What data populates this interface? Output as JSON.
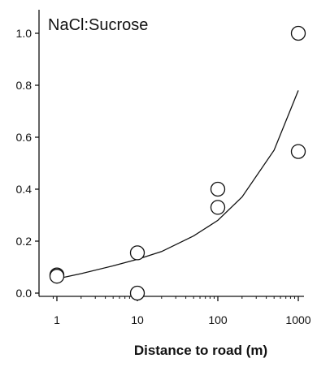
{
  "chart_data": {
    "type": "scatter",
    "title": "NaCl:Sucrose",
    "xlabel": "Distance to road (m)",
    "ylabel": "",
    "x_scale": "log",
    "xlim": [
      0.9,
      1100
    ],
    "ylim": [
      -0.02,
      1.08
    ],
    "grid": false,
    "x_ticks": [
      1,
      10,
      100,
      1000
    ],
    "x_tick_labels": [
      "1",
      "10",
      "100",
      "1000"
    ],
    "y_ticks": [
      0.0,
      0.2,
      0.4,
      0.6,
      0.8,
      1.0
    ],
    "y_tick_labels": [
      "0.0",
      "0.2",
      "0.4",
      "0.6",
      "0.8",
      "1.0"
    ],
    "series": [
      {
        "kind": "points",
        "marker": "open-circle",
        "x": [
          1,
          1,
          10,
          10,
          100,
          100,
          1000,
          1000
        ],
        "y": [
          0.07,
          0.065,
          0.155,
          0.0,
          0.4,
          0.33,
          1.0,
          0.545
        ]
      },
      {
        "kind": "fit-line",
        "x": [
          1,
          2,
          5,
          10,
          20,
          50,
          100,
          200,
          500,
          1000
        ],
        "y": [
          0.055,
          0.075,
          0.105,
          0.13,
          0.16,
          0.22,
          0.28,
          0.37,
          0.55,
          0.78
        ]
      }
    ],
    "colors": {
      "axis": "#111111",
      "marker_stroke": "#111111",
      "line": "#111111"
    }
  }
}
